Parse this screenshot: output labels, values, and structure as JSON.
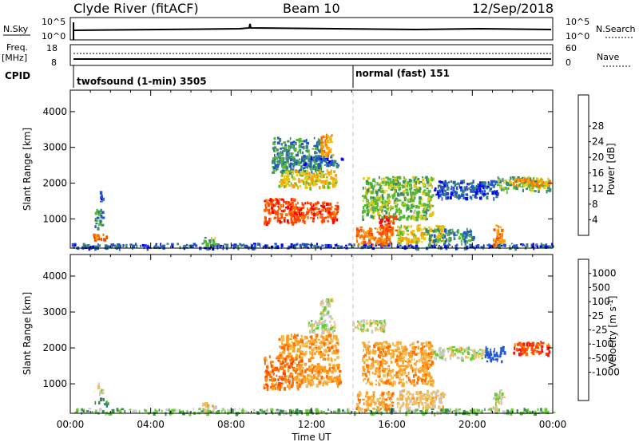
{
  "header": {
    "station": "Clyde River (fitACF)",
    "beam": "Beam 10",
    "date": "12/Sep/2018"
  },
  "noise_panel": {
    "left_label": "N.Sky",
    "left_ticks": [
      "10^5",
      "10^0"
    ],
    "right_ticks": [
      "10^5",
      "10^0"
    ],
    "right_label": "N.Search"
  },
  "freq_panel": {
    "left_label_1": "Freq.",
    "left_label_2": "[MHz]",
    "left_ticks": [
      "18",
      "8"
    ],
    "right_ticks": [
      "60",
      "0"
    ],
    "right_label": "Nave"
  },
  "cpid": {
    "label": "CPID",
    "programs": [
      {
        "name": "twofsound (1-min) 3505",
        "start_hour": 0
      },
      {
        "name": "normal (fast) 151",
        "start_hour": 14
      }
    ]
  },
  "chart_data": [
    {
      "type": "heatmap",
      "quantity": "Power",
      "ylabel": "Slant Range [km]",
      "xlabel": "",
      "x_range_hours": [
        0,
        24
      ],
      "ylim": [
        180,
        4600
      ],
      "yticks": [
        1000,
        2000,
        3000,
        4000
      ],
      "colorbar": {
        "label": "Power [dB]",
        "ticks": [
          4,
          8,
          12,
          16,
          20,
          24,
          28
        ],
        "colors": [
          "#0000ff",
          "#2255cc",
          "#3b8a6e",
          "#55bb33",
          "#e5c814",
          "#ffa000",
          "#ff7000",
          "#ff4400",
          "#ff0000"
        ]
      },
      "echo_regions": [
        {
          "t0": 0.0,
          "t1": 24.0,
          "r0": 200,
          "r1": 330,
          "level": 1
        },
        {
          "t0": 1.1,
          "t1": 1.9,
          "r0": 430,
          "r1": 600,
          "level": 6
        },
        {
          "t0": 1.2,
          "t1": 1.6,
          "r0": 750,
          "r1": 1300,
          "level": 2
        },
        {
          "t0": 1.45,
          "t1": 1.6,
          "r0": 1500,
          "r1": 1800,
          "level": 1
        },
        {
          "t0": 6.5,
          "t1": 7.2,
          "r0": 280,
          "r1": 500,
          "level": 3
        },
        {
          "t0": 9.6,
          "t1": 11.2,
          "r0": 900,
          "r1": 1600,
          "level": 7
        },
        {
          "t0": 10.0,
          "t1": 12.5,
          "r0": 2300,
          "r1": 3300,
          "level": 2
        },
        {
          "t0": 10.3,
          "t1": 13.2,
          "r0": 1900,
          "r1": 2400,
          "level": 4
        },
        {
          "t0": 11.1,
          "t1": 13.3,
          "r0": 950,
          "r1": 1500,
          "level": 7
        },
        {
          "t0": 11.5,
          "t1": 13.5,
          "r0": 2500,
          "r1": 2800,
          "level": 1
        },
        {
          "t0": 12.4,
          "t1": 13.0,
          "r0": 2800,
          "r1": 3400,
          "level": 5
        },
        {
          "t0": 14.2,
          "t1": 16.0,
          "r0": 300,
          "r1": 800,
          "level": 6
        },
        {
          "t0": 14.5,
          "t1": 18.0,
          "r0": 1000,
          "r1": 2200,
          "level": 3
        },
        {
          "t0": 15.3,
          "t1": 16.2,
          "r0": 600,
          "r1": 1100,
          "level": 7
        },
        {
          "t0": 16.2,
          "t1": 18.6,
          "r0": 350,
          "r1": 850,
          "level": 4
        },
        {
          "t0": 17.6,
          "t1": 20.0,
          "r0": 400,
          "r1": 750,
          "level": 2
        },
        {
          "t0": 18.0,
          "t1": 21.2,
          "r0": 1600,
          "r1": 2100,
          "level": 1
        },
        {
          "t0": 21.0,
          "t1": 21.5,
          "r0": 300,
          "r1": 850,
          "level": 6
        },
        {
          "t0": 21.2,
          "t1": 23.8,
          "r0": 1800,
          "r1": 2200,
          "level": 3
        },
        {
          "t0": 22.0,
          "t1": 23.8,
          "r0": 1950,
          "r1": 2150,
          "level": 5
        }
      ]
    },
    {
      "type": "heatmap",
      "quantity": "Velocity",
      "ylabel": "Slant Range [km]",
      "xlabel": "Time UT",
      "x_range_hours": [
        0,
        24
      ],
      "xticks": [
        "00:00",
        "04:00",
        "08:00",
        "12:00",
        "16:00",
        "20:00",
        "00:00"
      ],
      "ylim": [
        180,
        4600
      ],
      "yticks": [
        1000,
        2000,
        3000,
        4000
      ],
      "colorbar": {
        "label": "Velocity [m s^-1]",
        "ticks": [
          1000,
          500,
          100,
          25,
          -25,
          -100,
          -500,
          -1000
        ],
        "colors": [
          "#2255dd",
          "#2a6aa8",
          "#3b8a55",
          "#66cc33",
          "#c8c8c8",
          "#f0c060",
          "#ffa020",
          "#ff7000",
          "#ff4400",
          "#ff1010"
        ]
      },
      "echo_regions": [
        {
          "t0": 0.0,
          "t1": 24.0,
          "r0": 200,
          "r1": 330,
          "level": 3
        },
        {
          "t0": 1.2,
          "t1": 1.8,
          "r0": 430,
          "r1": 620,
          "level": 2
        },
        {
          "t0": 1.3,
          "t1": 1.55,
          "r0": 750,
          "r1": 1100,
          "level": 4
        },
        {
          "t0": 6.5,
          "t1": 7.2,
          "r0": 280,
          "r1": 500,
          "level": 5
        },
        {
          "t0": 9.6,
          "t1": 11.5,
          "r0": 900,
          "r1": 1800,
          "level": 7
        },
        {
          "t0": 10.3,
          "t1": 13.3,
          "r0": 1700,
          "r1": 2400,
          "level": 6
        },
        {
          "t0": 11.1,
          "t1": 13.4,
          "r0": 950,
          "r1": 1600,
          "level": 6
        },
        {
          "t0": 11.8,
          "t1": 13.2,
          "r0": 2450,
          "r1": 2800,
          "level": 4
        },
        {
          "t0": 12.4,
          "t1": 13.0,
          "r0": 2800,
          "r1": 3400,
          "level": 4
        },
        {
          "t0": 14.0,
          "t1": 15.7,
          "r0": 2500,
          "r1": 2800,
          "level": 4
        },
        {
          "t0": 14.2,
          "t1": 16.0,
          "r0": 300,
          "r1": 800,
          "level": 6
        },
        {
          "t0": 14.5,
          "t1": 18.0,
          "r0": 1000,
          "r1": 2200,
          "level": 6
        },
        {
          "t0": 16.2,
          "t1": 18.6,
          "r0": 350,
          "r1": 850,
          "level": 5
        },
        {
          "t0": 18.0,
          "t1": 20.5,
          "r0": 1700,
          "r1": 2050,
          "level": 4
        },
        {
          "t0": 20.6,
          "t1": 21.6,
          "r0": 1650,
          "r1": 2050,
          "level": 0
        },
        {
          "t0": 21.0,
          "t1": 21.5,
          "r0": 300,
          "r1": 850,
          "level": 4
        },
        {
          "t0": 22.0,
          "t1": 23.8,
          "r0": 1850,
          "r1": 2200,
          "level": 8
        }
      ]
    }
  ]
}
